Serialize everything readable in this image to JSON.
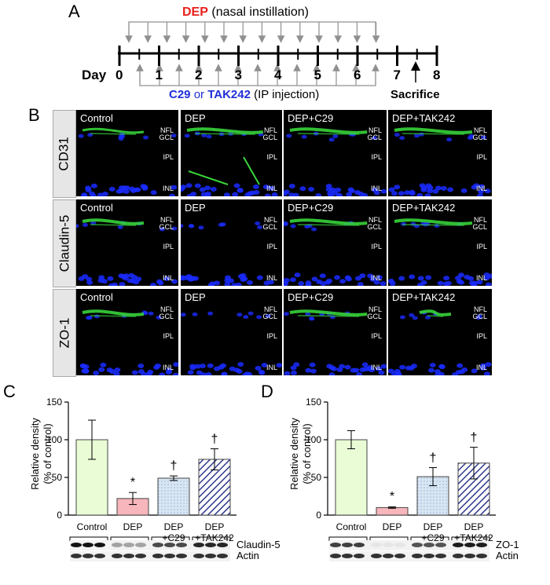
{
  "panel_letters": {
    "a": "A",
    "b": "B",
    "c": "C",
    "d": "D"
  },
  "panel_a": {
    "dep_title": "DEP",
    "dep_route": "(nasal instillation)",
    "day_label": "Day",
    "days": [
      "0",
      "1",
      "2",
      "3",
      "4",
      "5",
      "6",
      "7",
      "8"
    ],
    "drug1": "C29",
    "or_text": "or",
    "drug2": "TAK242",
    "drug_route": "(IP injection)",
    "sacrifice": "Sacrifice",
    "colors": {
      "dep": "#e8201c",
      "drug": "#1f2fd6",
      "arrow": "#909090"
    }
  },
  "panel_b": {
    "stains": [
      "CD31",
      "Claudin-5",
      "ZO-1"
    ],
    "conditions": [
      "Control",
      "DEP",
      "DEP+C29",
      "DEP+TAK242"
    ],
    "layers": {
      "nfl": "NFL",
      "gcl": "GCL",
      "ipl": "IPL",
      "inl": "INL"
    },
    "colors": {
      "nuclei": "#1a2cff",
      "vessel": "#37d43a"
    }
  },
  "chart_data": [
    {
      "type": "bar",
      "panel": "C",
      "categories": [
        "Control",
        "DEP",
        "DEP +C29",
        "DEP +TAK242"
      ],
      "values": [
        100,
        22,
        49,
        74
      ],
      "errors": [
        26,
        8,
        3,
        14
      ],
      "significance": [
        "",
        "*",
        "†",
        "†"
      ],
      "ylabel": "Relative density (% of control)",
      "ylim": [
        0,
        150
      ],
      "yticks": [
        0,
        50,
        100,
        150
      ],
      "bands": [
        "Claudin-5",
        "Actin"
      ],
      "colors": [
        "#eafcd6",
        "#f6b6bb",
        "#d8e6f4",
        "#2e3a8c"
      ]
    },
    {
      "type": "bar",
      "panel": "D",
      "categories": [
        "Control",
        "DEP",
        "DEP +C29",
        "DEP +TAK242"
      ],
      "values": [
        100,
        10,
        51,
        69
      ],
      "errors": [
        12,
        1,
        12,
        21
      ],
      "significance": [
        "",
        "*",
        "†",
        "†"
      ],
      "ylabel": "Relative density (% of control)",
      "ylim": [
        0,
        150
      ],
      "yticks": [
        0,
        50,
        100,
        150
      ],
      "bands": [
        "ZO-1",
        "Actin"
      ],
      "colors": [
        "#eafcd6",
        "#f6b6bb",
        "#d8e6f4",
        "#2e3a8c"
      ]
    }
  ]
}
